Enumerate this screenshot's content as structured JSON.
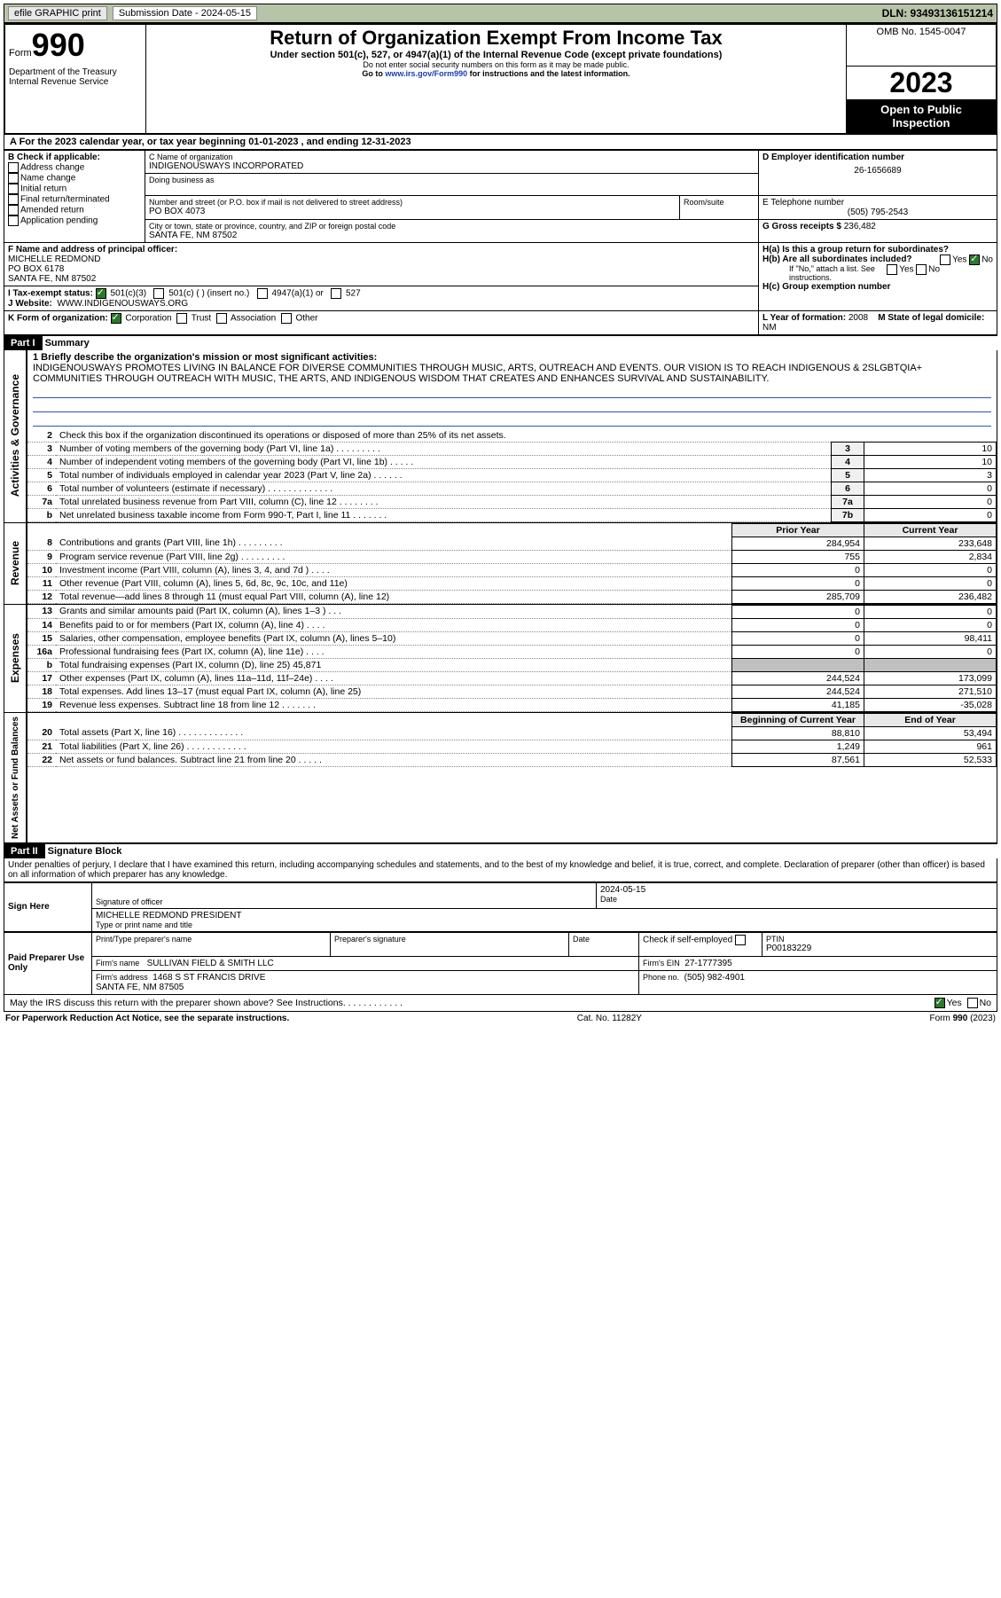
{
  "top": {
    "efile": "efile GRAPHIC print",
    "submission_label": "Submission Date - 2024-05-15",
    "dln": "DLN: 93493136151214"
  },
  "header": {
    "form_word": "Form",
    "form_num": "990",
    "dept": "Department of the Treasury\nInternal Revenue Service",
    "title": "Return of Organization Exempt From Income Tax",
    "sub1": "Under section 501(c), 527, or 4947(a)(1) of the Internal Revenue Code (except private foundations)",
    "sub2": "Do not enter social security numbers on this form as it may be made public.",
    "sub3_pre": "Go to ",
    "sub3_link": "www.irs.gov/Form990",
    "sub3_post": " for instructions and the latest information.",
    "omb": "OMB No. 1545-0047",
    "year": "2023",
    "open": "Open to Public Inspection"
  },
  "rowA": "A  For the 2023 calendar year, or tax year beginning 01-01-2023   , and ending 12-31-2023",
  "boxB": {
    "label": "B Check if applicable:",
    "opts": [
      "Address change",
      "Name change",
      "Initial return",
      "Final return/terminated",
      "Amended return",
      "Application pending"
    ]
  },
  "boxC": {
    "name_lbl": "C Name of organization",
    "name": "INDIGENOUSWAYS INCORPORATED",
    "dba_lbl": "Doing business as",
    "addr_lbl": "Number and street (or P.O. box if mail is not delivered to street address)",
    "room_lbl": "Room/suite",
    "addr": "PO BOX 4073",
    "city_lbl": "City or town, state or province, country, and ZIP or foreign postal code",
    "city": "SANTA FE, NM  87502"
  },
  "boxD": {
    "lbl": "D Employer identification number",
    "val": "26-1656689"
  },
  "boxE": {
    "lbl": "E Telephone number",
    "val": "(505) 795-2543"
  },
  "boxG": {
    "lbl": "G Gross receipts $",
    "val": "236,482"
  },
  "boxF": {
    "lbl": "F Name and address of principal officer:",
    "lines": [
      "MICHELLE REDMOND",
      "PO BOX 6178",
      "SANTA FE, NM  87502"
    ]
  },
  "boxH": {
    "a": "H(a)  Is this a group return for subordinates?",
    "b": "H(b)  Are all subordinates included?",
    "note": "If \"No,\" attach a list. See instructions.",
    "c": "H(c)  Group exemption number",
    "yes": "Yes",
    "no": "No"
  },
  "rowI": {
    "lbl": "I   Tax-exempt status:",
    "opts": [
      "501(c)(3)",
      "501(c) (  ) (insert no.)",
      "4947(a)(1) or",
      "527"
    ]
  },
  "rowJ": {
    "lbl": "J   Website:",
    "val": "WWW.INDIGENOUSWAYS.ORG"
  },
  "rowK": {
    "lbl": "K Form of organization:",
    "opts": [
      "Corporation",
      "Trust",
      "Association",
      "Other"
    ]
  },
  "rowL": {
    "lbl": "L Year of formation:",
    "val": "2008"
  },
  "rowM": {
    "lbl": "M State of legal domicile:",
    "val": "NM"
  },
  "part1": {
    "num": "Part I",
    "title": "Summary"
  },
  "mission": {
    "lbl": "1   Briefly describe the organization's mission or most significant activities:",
    "text": "INDIGENOUSWAYS PROMOTES LIVING IN BALANCE FOR DIVERSE COMMUNITIES THROUGH MUSIC, ARTS, OUTREACH AND EVENTS. OUR VISION IS TO REACH INDIGENOUS & 2SLGBTQIA+ COMMUNITIES THROUGH OUTREACH WITH MUSIC, THE ARTS, AND INDIGENOUS WISDOM THAT CREATES AND ENHANCES SURVIVAL AND SUSTAINABILITY."
  },
  "gov": {
    "side": "Activities & Governance",
    "rows": [
      {
        "n": "2",
        "t": "Check this box      if the organization discontinued its operations or disposed of more than 25% of its net assets."
      },
      {
        "n": "3",
        "t": "Number of voting members of the governing body (Part VI, line 1a)  .   .   .   .   .   .   .   .   .",
        "b": "3",
        "v": "10"
      },
      {
        "n": "4",
        "t": "Number of independent voting members of the governing body (Part VI, line 1b)  .   .   .   .   .",
        "b": "4",
        "v": "10"
      },
      {
        "n": "5",
        "t": "Total number of individuals employed in calendar year 2023 (Part V, line 2a)  .   .   .   .   .   .",
        "b": "5",
        "v": "3"
      },
      {
        "n": "6",
        "t": "Total number of volunteers (estimate if necessary)  .   .   .   .   .   .   .   .   .   .   .   .   .",
        "b": "6",
        "v": "0"
      },
      {
        "n": "7a",
        "t": "Total unrelated business revenue from Part VIII, column (C), line 12  .   .   .   .   .   .   .   .",
        "b": "7a",
        "v": "0"
      },
      {
        "n": "b",
        "t": "Net unrelated business taxable income from Form 990-T, Part I, line 11  .   .   .   .   .   .   .",
        "b": "7b",
        "v": "0"
      }
    ]
  },
  "revenue": {
    "side": "Revenue",
    "hdr": [
      "Prior Year",
      "Current Year"
    ],
    "rows": [
      {
        "n": "8",
        "t": "Contributions and grants (Part VIII, line 1h)  .   .   .   .   .   .   .   .   .",
        "p": "284,954",
        "c": "233,648"
      },
      {
        "n": "9",
        "t": "Program service revenue (Part VIII, line 2g)  .   .   .   .   .   .   .   .   .",
        "p": "755",
        "c": "2,834"
      },
      {
        "n": "10",
        "t": "Investment income (Part VIII, column (A), lines 3, 4, and 7d )  .   .   .   .",
        "p": "0",
        "c": "0"
      },
      {
        "n": "11",
        "t": "Other revenue (Part VIII, column (A), lines 5, 6d, 8c, 9c, 10c, and 11e)",
        "p": "0",
        "c": "0"
      },
      {
        "n": "12",
        "t": "Total revenue—add lines 8 through 11 (must equal Part VIII, column (A), line 12)",
        "p": "285,709",
        "c": "236,482"
      }
    ]
  },
  "expenses": {
    "side": "Expenses",
    "rows": [
      {
        "n": "13",
        "t": "Grants and similar amounts paid (Part IX, column (A), lines 1–3 )  .   .   .",
        "p": "0",
        "c": "0"
      },
      {
        "n": "14",
        "t": "Benefits paid to or for members (Part IX, column (A), line 4)  .   .   .   .",
        "p": "0",
        "c": "0"
      },
      {
        "n": "15",
        "t": "Salaries, other compensation, employee benefits (Part IX, column (A), lines 5–10)",
        "p": "0",
        "c": "98,411"
      },
      {
        "n": "16a",
        "t": "Professional fundraising fees (Part IX, column (A), line 11e)  .   .   .   .",
        "p": "0",
        "c": "0"
      },
      {
        "n": "b",
        "t": "Total fundraising expenses (Part IX, column (D), line 25) 45,871",
        "gray": true
      },
      {
        "n": "17",
        "t": "Other expenses (Part IX, column (A), lines 11a–11d, 11f–24e)  .   .   .   .",
        "p": "244,524",
        "c": "173,099"
      },
      {
        "n": "18",
        "t": "Total expenses. Add lines 13–17 (must equal Part IX, column (A), line 25)",
        "p": "244,524",
        "c": "271,510"
      },
      {
        "n": "19",
        "t": "Revenue less expenses. Subtract line 18 from line 12  .   .   .   .   .   .   .",
        "p": "41,185",
        "c": "-35,028"
      }
    ]
  },
  "net": {
    "side": "Net Assets or Fund Balances",
    "hdr": [
      "Beginning of Current Year",
      "End of Year"
    ],
    "rows": [
      {
        "n": "20",
        "t": "Total assets (Part X, line 16)  .   .   .   .   .   .   .   .   .   .   .   .   .",
        "p": "88,810",
        "c": "53,494"
      },
      {
        "n": "21",
        "t": "Total liabilities (Part X, line 26)  .   .   .   .   .   .   .   .   .   .   .   .",
        "p": "1,249",
        "c": "961"
      },
      {
        "n": "22",
        "t": "Net assets or fund balances. Subtract line 21 from line 20  .   .   .   .   .",
        "p": "87,561",
        "c": "52,533"
      }
    ]
  },
  "part2": {
    "num": "Part II",
    "title": "Signature Block"
  },
  "decl": "Under penalties of perjury, I declare that I have examined this return, including accompanying schedules and statements, and to the best of my knowledge and belief, it is true, correct, and complete. Declaration of preparer (other than officer) is based on all information of which preparer has any knowledge.",
  "sign": {
    "side": "Sign Here",
    "sig_lbl": "Signature of officer",
    "date_lbl": "Date",
    "date": "2024-05-15",
    "name": "MICHELLE REDMOND PRESIDENT",
    "name_lbl": "Type or print name and title"
  },
  "paid": {
    "side": "Paid Preparer Use Only",
    "cols": [
      "Print/Type preparer's name",
      "Preparer's signature",
      "Date"
    ],
    "check_lbl": "Check      if self-employed",
    "ptin_lbl": "PTIN",
    "ptin": "P00183229",
    "firm_name_lbl": "Firm's name",
    "firm_name": "SULLIVAN FIELD & SMITH LLC",
    "firm_ein_lbl": "Firm's EIN",
    "firm_ein": "27-1777395",
    "firm_addr_lbl": "Firm's address",
    "firm_addr": "1468 S ST FRANCIS DRIVE\nSANTA FE, NM  87505",
    "phone_lbl": "Phone no.",
    "phone": "(505) 982-4901"
  },
  "discuss": "May the IRS discuss this return with the preparer shown above? See Instructions.  .   .   .   .   .   .   .   .   .   .   .",
  "footer": {
    "l": "For Paperwork Reduction Act Notice, see the separate instructions.",
    "m": "Cat. No. 11282Y",
    "r": "Form 990 (2023)"
  }
}
